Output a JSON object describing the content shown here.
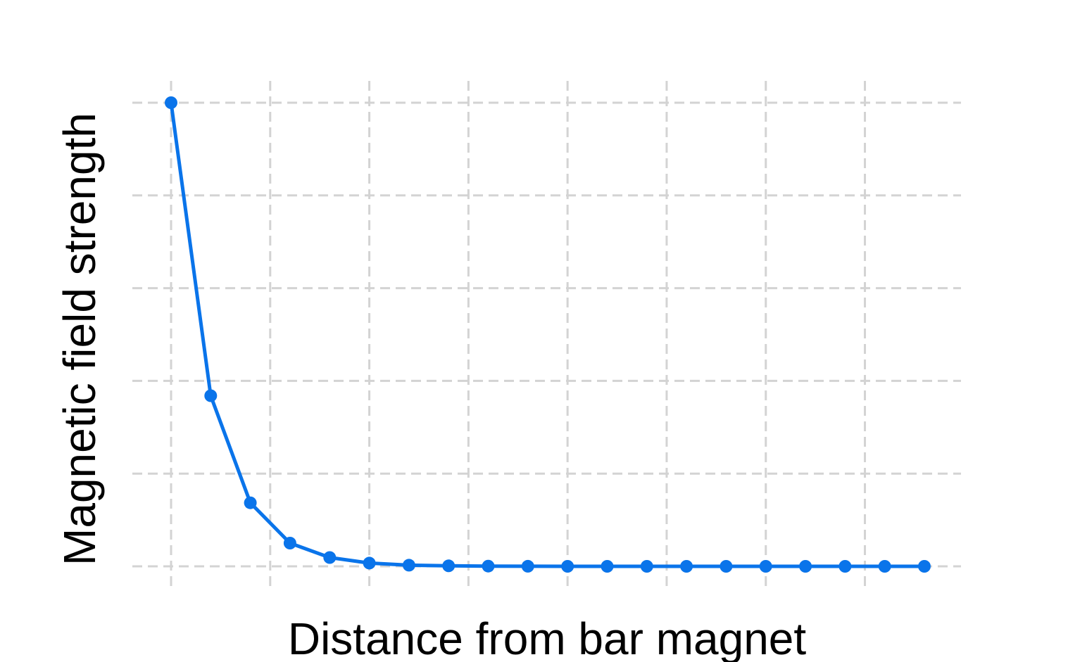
{
  "chart_data": {
    "type": "line",
    "title": "",
    "xlabel": "Distance from bar magnet",
    "ylabel": "Magnetic field strength",
    "x": [
      0.1,
      0.3,
      0.5,
      0.7,
      0.9,
      1.1,
      1.3,
      1.5,
      1.7,
      1.9,
      2.1,
      2.3,
      2.5,
      2.7,
      2.9,
      3.1,
      3.3,
      3.5,
      3.7,
      3.9
    ],
    "xlim": [
      0.1,
      3.9
    ],
    "ylim": [
      0,
      1
    ],
    "x_gridlines": [
      0.1,
      0.6,
      1.1,
      1.6,
      2.1,
      2.6,
      3.1,
      3.6
    ],
    "y_gridlines": [
      0,
      0.2,
      0.4,
      0.6,
      0.8,
      1.0
    ],
    "grid": true,
    "legend": "none",
    "series": [
      {
        "name": "Magnetic field strength",
        "color": "#0a74ea",
        "values": [
          1.0,
          0.368,
          0.137,
          0.05,
          0.019,
          0.007,
          0.0025,
          0.001,
          0.0004,
          0.0001,
          0,
          0,
          0,
          0,
          0,
          0,
          0,
          0,
          0,
          0
        ]
      }
    ]
  }
}
